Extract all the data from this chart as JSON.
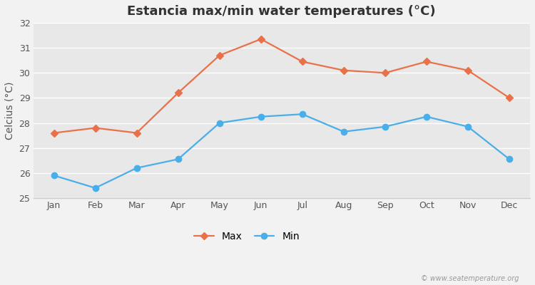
{
  "title": "Estancia max/min water temperatures (°C)",
  "ylabel": "Celcius (°C)",
  "months": [
    "Jan",
    "Feb",
    "Mar",
    "Apr",
    "May",
    "Jun",
    "Jul",
    "Aug",
    "Sep",
    "Oct",
    "Nov",
    "Dec"
  ],
  "max_values": [
    27.6,
    27.8,
    27.6,
    29.2,
    30.7,
    31.35,
    30.45,
    30.1,
    30.0,
    30.45,
    30.1,
    29.0
  ],
  "min_values": [
    25.9,
    25.4,
    26.2,
    26.55,
    28.0,
    28.25,
    28.35,
    27.65,
    27.85,
    28.25,
    27.85,
    26.55
  ],
  "max_color": "#e8714a",
  "min_color": "#4aaee8",
  "bg_color": "#f2f2f2",
  "plot_bg_color": "#e8e8e8",
  "grid_color": "#ffffff",
  "ylim": [
    25,
    32
  ],
  "yticks": [
    25,
    26,
    27,
    28,
    29,
    30,
    31,
    32
  ],
  "legend_labels": [
    "Max",
    "Min"
  ],
  "watermark": "© www.seatemperature.org",
  "title_fontsize": 13,
  "label_fontsize": 10,
  "tick_fontsize": 9,
  "legend_fontsize": 10
}
